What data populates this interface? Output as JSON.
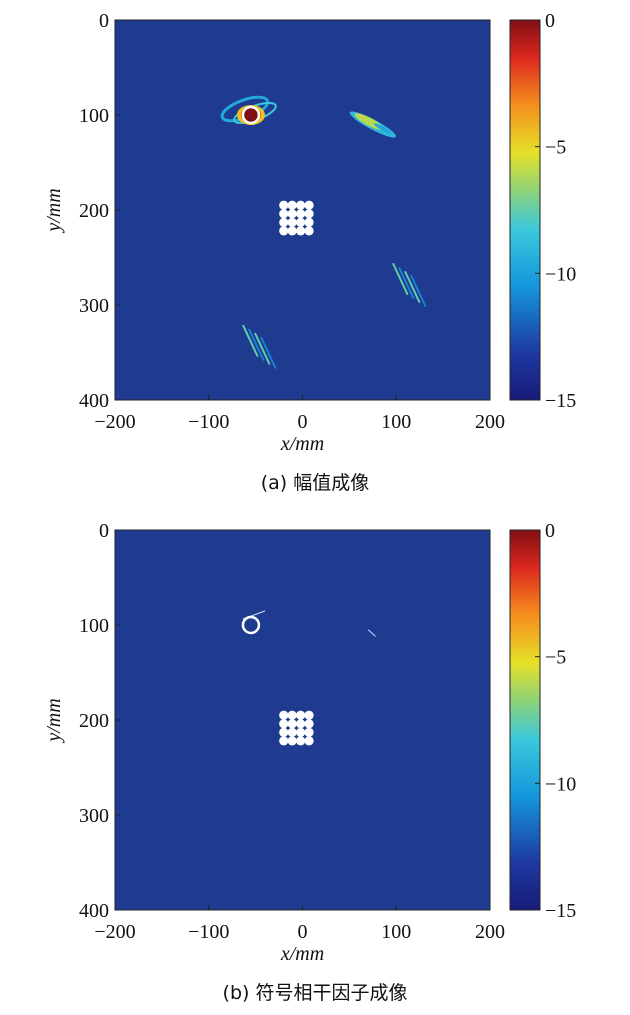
{
  "chart_data": [
    {
      "type": "heatmap",
      "caption": "(a) 幅值成像",
      "xlabel": "x/mm",
      "ylabel": "y/mm",
      "xlim": [
        -200,
        200
      ],
      "ylim": [
        400,
        0
      ],
      "xticks": [
        "-200",
        "-100",
        "0",
        "100",
        "200"
      ],
      "yticks": [
        "0",
        "100",
        "200",
        "300",
        "400"
      ],
      "colorbar": {
        "range": [
          -15,
          0
        ],
        "ticks": [
          "0",
          "-5",
          "-10",
          "-15"
        ]
      },
      "background_value": -15,
      "hotspots": [
        {
          "x": -55,
          "y": 100,
          "value": 0,
          "shape": "spot-with-arcs"
        },
        {
          "x": 75,
          "y": 110,
          "value": -6,
          "shape": "elongated"
        },
        {
          "x": 115,
          "y": 280,
          "value": -11,
          "shape": "streaks"
        },
        {
          "x": -45,
          "y": 345,
          "value": -11,
          "shape": "streaks"
        }
      ],
      "markers": {
        "hole": {
          "x": -55,
          "y": 100
        },
        "grid": {
          "x_start": -20,
          "y_start": 195,
          "rows": 4,
          "cols": 4,
          "spacing": 9
        }
      }
    },
    {
      "type": "heatmap",
      "caption": "(b) 符号相干因子成像",
      "xlabel": "x/mm",
      "ylabel": "y/mm",
      "xlim": [
        -200,
        200
      ],
      "ylim": [
        400,
        0
      ],
      "xticks": [
        "-200",
        "-100",
        "0",
        "100",
        "200"
      ],
      "yticks": [
        "0",
        "100",
        "200",
        "300",
        "400"
      ],
      "colorbar": {
        "range": [
          -15,
          0
        ],
        "ticks": [
          "0",
          "-5",
          "-10",
          "-15"
        ]
      },
      "background_value": -15,
      "hotspots": [],
      "markers": {
        "hole": {
          "x": -55,
          "y": 100
        },
        "grid": {
          "x_start": -20,
          "y_start": 195,
          "rows": 4,
          "cols": 4,
          "spacing": 9
        }
      }
    }
  ]
}
